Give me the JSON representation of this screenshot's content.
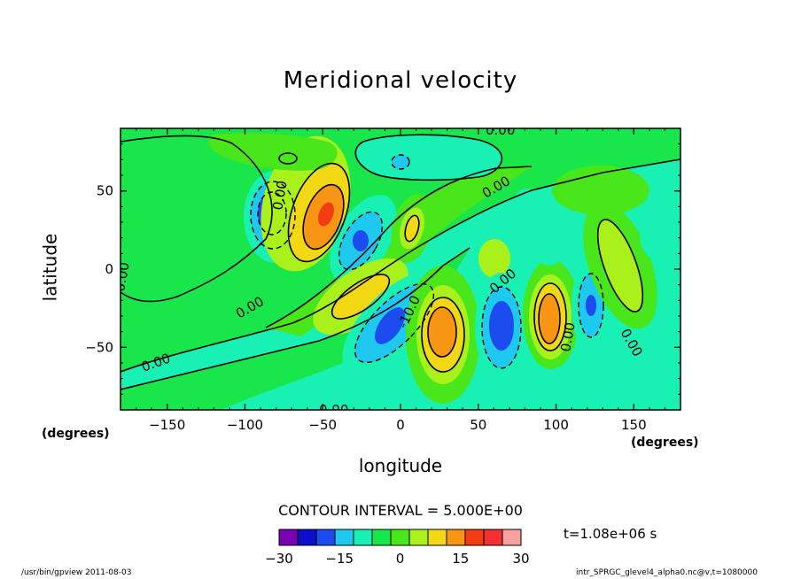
{
  "chart_data": {
    "type": "contour",
    "title": "Meridional velocity",
    "xlabel": "longitude",
    "ylabel": "latitude",
    "x_units": "(degrees)",
    "xlim": [
      -180,
      180
    ],
    "ylim": [
      -90,
      90
    ],
    "x_ticks": [
      -150,
      -100,
      -50,
      0,
      50,
      100,
      150
    ],
    "y_ticks": [
      50,
      0,
      -50
    ],
    "contour_interval_text": "CONTOUR INTERVAL = 5.000E+00",
    "colorbar": {
      "range": [
        -30,
        30
      ],
      "tick_labels": [
        "−30",
        "−15",
        "0",
        "15",
        "30"
      ],
      "tick_values": [
        -30,
        -15,
        0,
        15,
        30
      ],
      "colors": [
        "#7a00b4",
        "#0a10c8",
        "#1c4cf0",
        "#1ec8ee",
        "#18f0b4",
        "#18e64a",
        "#48e61a",
        "#aaf01a",
        "#f2d814",
        "#f89614",
        "#f43c14",
        "#f03232",
        "#f8a0a0"
      ]
    },
    "contour_labels": [
      "0.00",
      "0.00",
      "0.00",
      "0.00",
      "0.00",
      "0.00",
      "0.00",
      "0.00",
      "0.00",
      "-10.0",
      "0.00"
    ],
    "extrema": [
      {
        "lon": -80,
        "lat": 35,
        "value": -20,
        "kind": "min"
      },
      {
        "lon": -47,
        "lat": 35,
        "value": 20,
        "kind": "max"
      },
      {
        "lon": -25,
        "lat": 17,
        "value": -15,
        "kind": "min"
      },
      {
        "lon": 8,
        "lat": 25,
        "value": 10,
        "kind": "max"
      },
      {
        "lon": -25,
        "lat": -20,
        "value": 12,
        "kind": "max"
      },
      {
        "lon": -8,
        "lat": -38,
        "value": -15,
        "kind": "min"
      },
      {
        "lon": 27,
        "lat": -40,
        "value": 20,
        "kind": "max"
      },
      {
        "lon": 64,
        "lat": -37,
        "value": -20,
        "kind": "min"
      },
      {
        "lon": 96,
        "lat": -33,
        "value": 20,
        "kind": "max"
      },
      {
        "lon": 124,
        "lat": -22,
        "value": -15,
        "kind": "min"
      }
    ]
  },
  "texts": {
    "title": "Meridional velocity",
    "xlabel": "longitude",
    "ylabel": "latitude",
    "x_units_left": "(degrees)",
    "x_units_right": "(degrees)",
    "contour_interval": "CONTOUR INTERVAL = 5.000E+00",
    "time": "t=1.08e+06 s",
    "footer_left": "/usr/bin/gpview   2011-08-03",
    "footer_right": "intr_SPRGC_glevel4_alpha0.nc@v,t=1080000"
  }
}
